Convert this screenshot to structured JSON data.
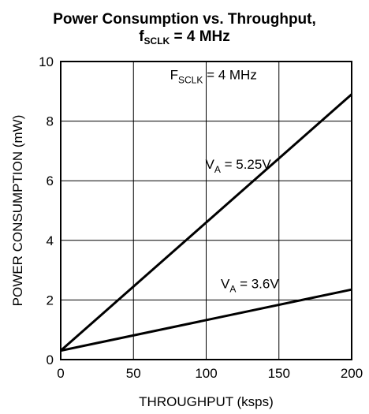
{
  "chart_data": {
    "type": "line",
    "title_line1": "Power Consumption vs. Throughput,",
    "title_line2_main": "f",
    "title_line2_sub": "SCLK",
    "title_line2_rest": " = 4 MHz",
    "xlabel": "THROUGHPUT (ksps)",
    "ylabel": "POWER CONSUMPTION (mW)",
    "xlim": [
      0,
      200
    ],
    "ylim": [
      0,
      10
    ],
    "x_ticks": [
      0,
      50,
      100,
      150,
      200
    ],
    "y_ticks": [
      0,
      2,
      4,
      6,
      8,
      10
    ],
    "x_tick_labels": [
      "0",
      "50",
      "100",
      "150",
      "200"
    ],
    "y_tick_labels": [
      "0",
      "2",
      "4",
      "6",
      "8",
      "10"
    ],
    "grid": true,
    "series": [
      {
        "name": "VA = 5.25V",
        "x": [
          0,
          200
        ],
        "y": [
          0.3,
          8.9
        ]
      },
      {
        "name": "VA = 3.6V",
        "x": [
          0,
          200
        ],
        "y": [
          0.3,
          2.35
        ]
      }
    ],
    "annotations": [
      {
        "main": "F",
        "sub": "SCLK",
        "rest": " = 4 MHz",
        "x": 105,
        "y": 9.4
      },
      {
        "main": "V",
        "sub": "A",
        "rest": " = 5.25V",
        "x": 122,
        "y": 6.4
      },
      {
        "main": "V",
        "sub": "A",
        "rest": " = 3.6V",
        "x": 130,
        "y": 2.4
      }
    ]
  }
}
